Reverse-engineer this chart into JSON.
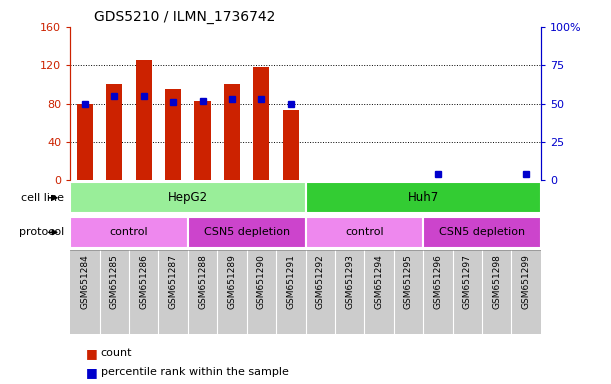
{
  "title": "GDS5210 / ILMN_1736742",
  "samples": [
    "GSM651284",
    "GSM651285",
    "GSM651286",
    "GSM651287",
    "GSM651288",
    "GSM651289",
    "GSM651290",
    "GSM651291",
    "GSM651292",
    "GSM651293",
    "GSM651294",
    "GSM651295",
    "GSM651296",
    "GSM651297",
    "GSM651298",
    "GSM651299"
  ],
  "counts": [
    80,
    100,
    125,
    95,
    83,
    100,
    118,
    73,
    0,
    0,
    0,
    1,
    1,
    0,
    0,
    1
  ],
  "percentile_ranks": [
    50,
    55,
    55,
    51,
    52,
    53,
    53,
    50,
    null,
    null,
    null,
    null,
    4,
    null,
    null,
    4
  ],
  "ylim_left": [
    0,
    160
  ],
  "ylim_right": [
    0,
    100
  ],
  "yticks_left": [
    0,
    40,
    80,
    120,
    160
  ],
  "yticks_right": [
    0,
    25,
    50,
    75,
    100
  ],
  "ytick_labels_right": [
    "0",
    "25",
    "50",
    "75",
    "100%"
  ],
  "bar_color": "#cc2200",
  "dot_color": "#0000cc",
  "cell_line_color_hepg2": "#99ee99",
  "cell_line_color_huh7": "#33cc33",
  "protocol_color_control": "#ee88ee",
  "protocol_color_csn5": "#cc44cc",
  "cell_line_groups": [
    {
      "label": "HepG2",
      "start": 0,
      "end": 7
    },
    {
      "label": "Huh7",
      "start": 8,
      "end": 15
    }
  ],
  "protocol_groups": [
    {
      "label": "control",
      "start": 0,
      "end": 3
    },
    {
      "label": "CSN5 depletion",
      "start": 4,
      "end": 7
    },
    {
      "label": "control",
      "start": 8,
      "end": 11
    },
    {
      "label": "CSN5 depletion",
      "start": 12,
      "end": 15
    }
  ],
  "legend_items": [
    {
      "label": "count",
      "color": "#cc2200"
    },
    {
      "label": "percentile rank within the sample",
      "color": "#0000cc"
    }
  ],
  "grid_color": "#aaaaaa",
  "bg_color": "#ffffff",
  "tick_area_bg": "#cccccc",
  "bar_width": 0.55
}
